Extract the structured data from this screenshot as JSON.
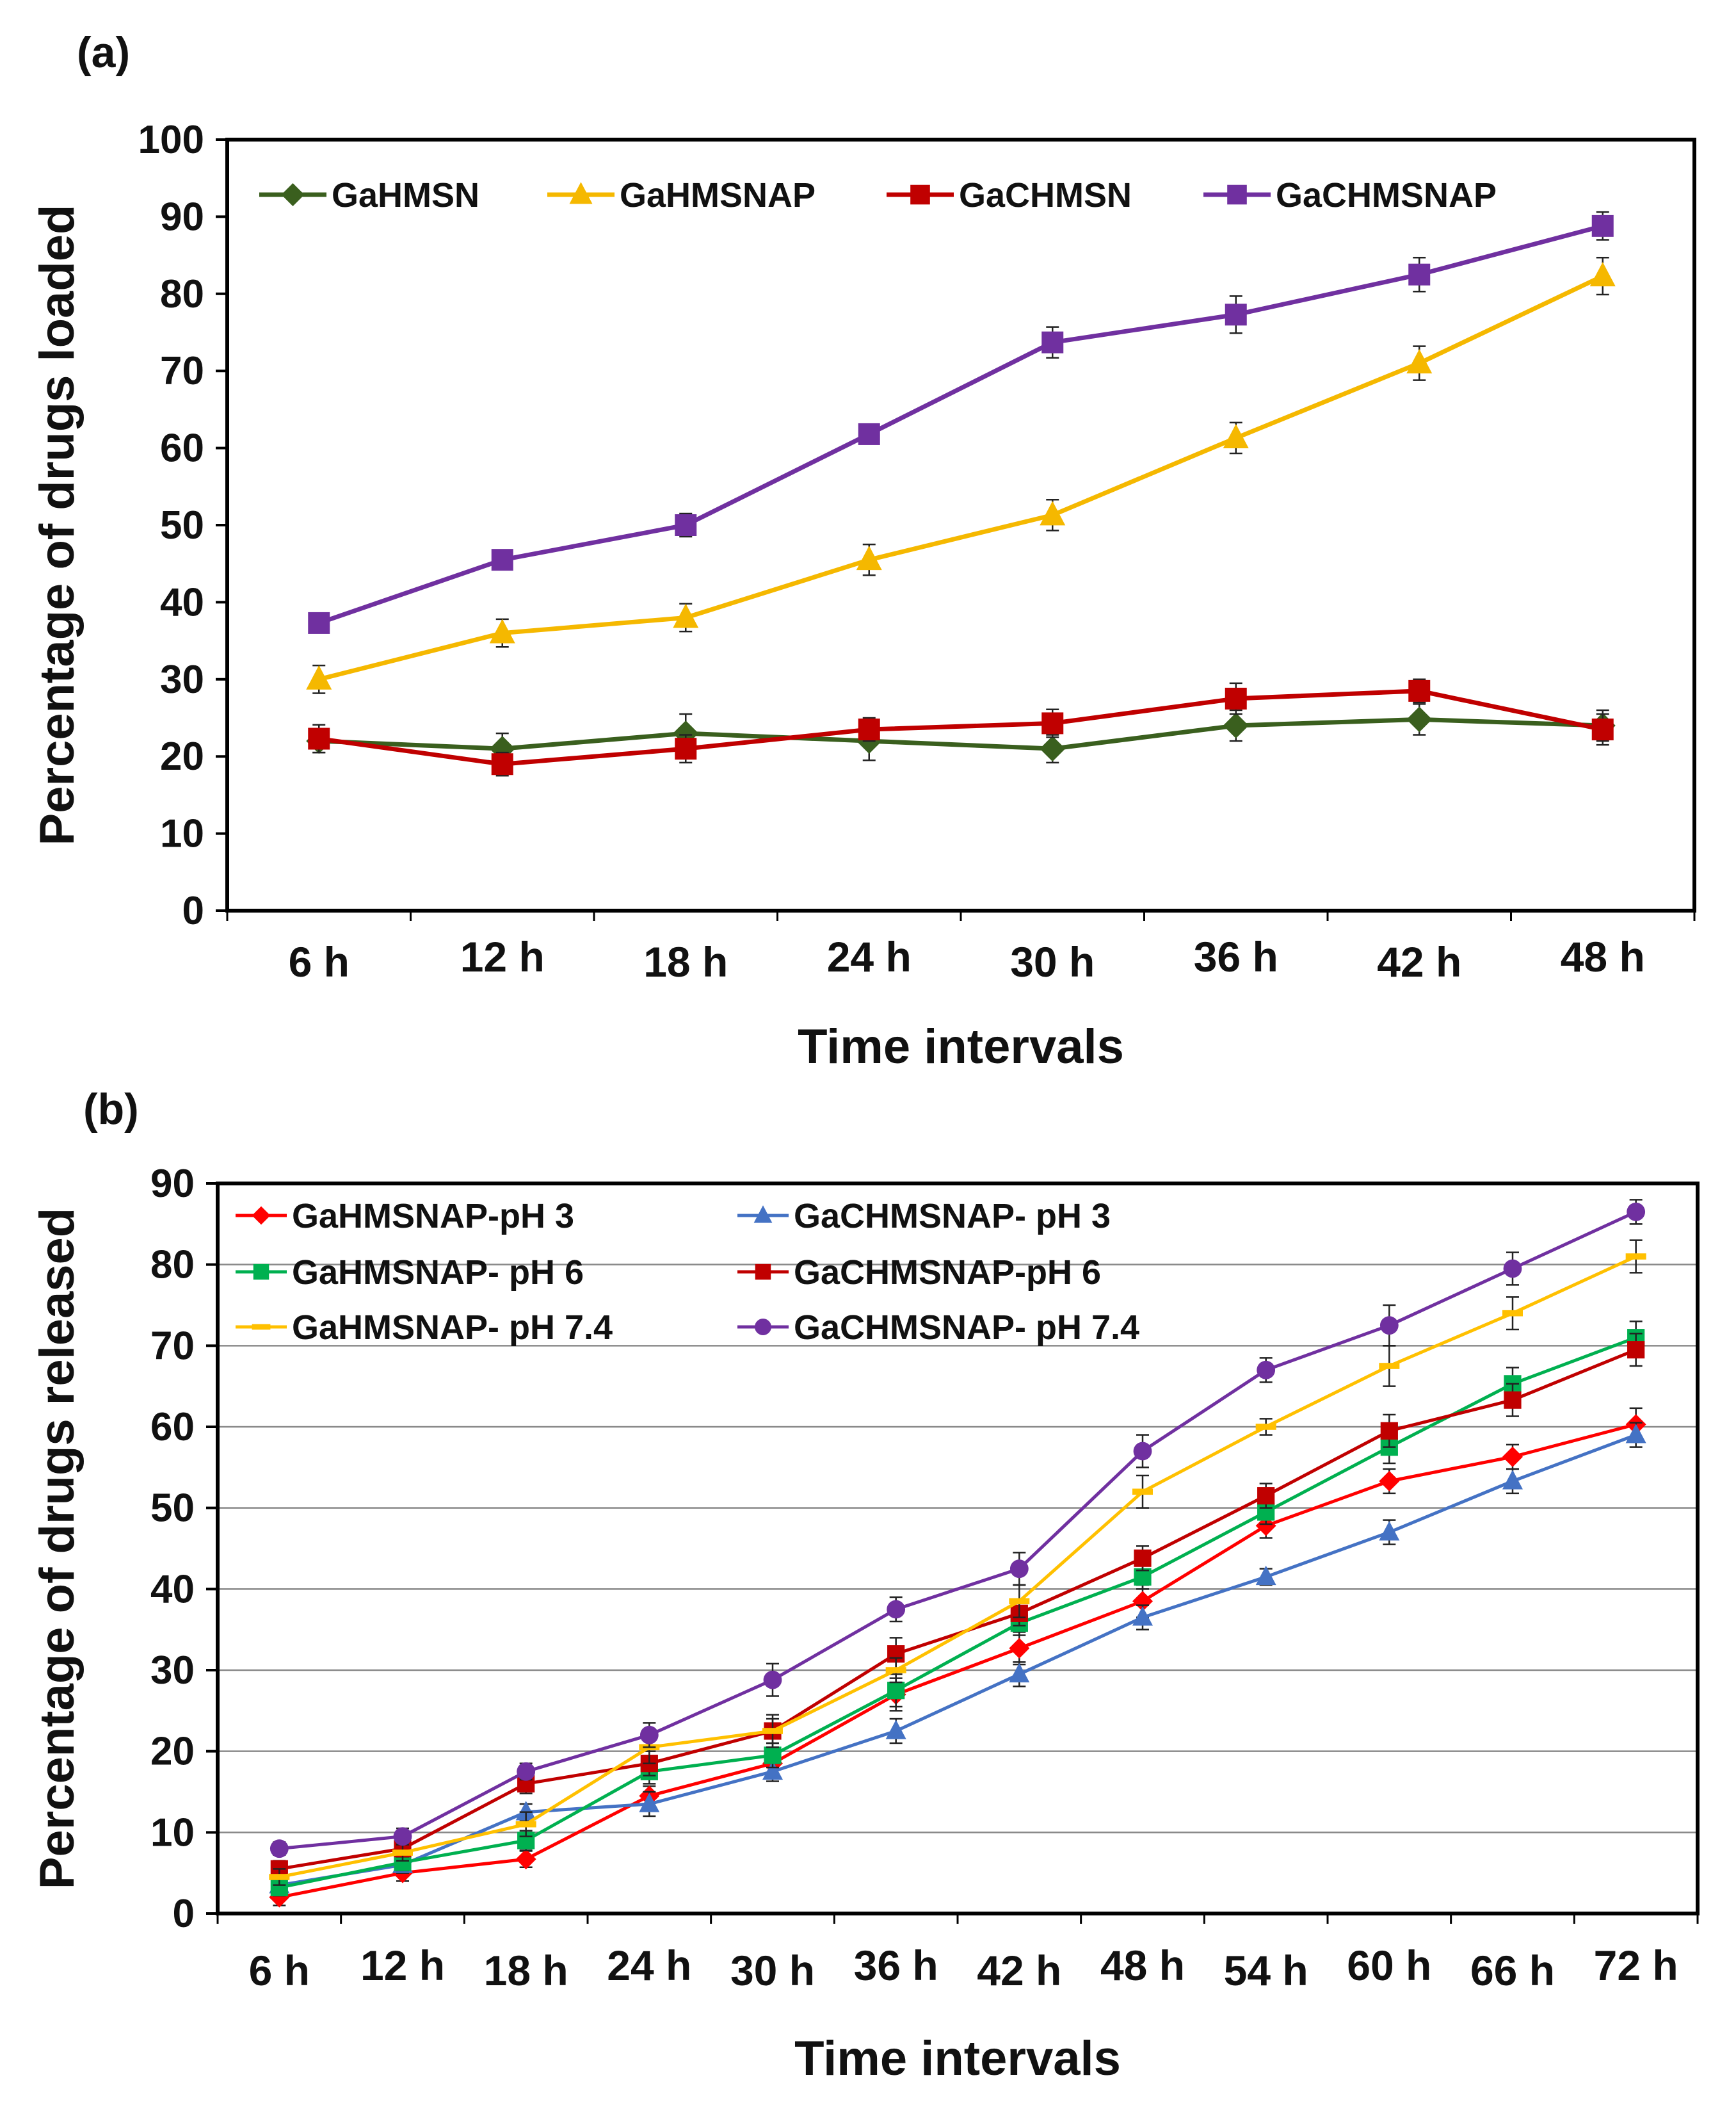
{
  "chart_data": [
    {
      "type": "line",
      "panel_label": "(a)",
      "title": "",
      "xlabel": "Time intervals",
      "ylabel": "Percentage of drugs loaded",
      "ylim": [
        0,
        100
      ],
      "yticks": [
        0,
        10,
        20,
        30,
        40,
        50,
        60,
        70,
        80,
        90,
        100
      ],
      "grid": false,
      "legend_position": "top",
      "categories": [
        "6 h",
        "12 h",
        "18 h",
        "24 h",
        "30 h",
        "36 h",
        "42 h",
        "48 h"
      ],
      "series": [
        {
          "name": "GaHMSN",
          "color": "#3a5f1e",
          "marker": "diamond",
          "values": [
            22,
            21,
            23,
            22,
            21,
            24,
            24.8,
            24
          ],
          "errors": [
            1.5,
            2,
            2.5,
            2.5,
            1.8,
            2,
            2,
            2
          ]
        },
        {
          "name": "GaHMSNAP",
          "color": "#f5b800",
          "marker": "triangle",
          "values": [
            30,
            36,
            38,
            45.5,
            51.3,
            61.3,
            71,
            82.3
          ],
          "errors": [
            1.8,
            1.8,
            1.8,
            2,
            2,
            2,
            2.2,
            2.4
          ]
        },
        {
          "name": "GaCHMSN",
          "color": "#c00000",
          "marker": "square",
          "values": [
            22.3,
            19,
            21,
            23.5,
            24.3,
            27.5,
            28.5,
            23.5
          ],
          "errors": [
            1.8,
            1.5,
            1.8,
            1.5,
            1.8,
            2,
            1.5,
            2
          ]
        },
        {
          "name": "GaCHMSNAP",
          "color": "#7030a0",
          "marker": "square",
          "values": [
            37.3,
            45.5,
            50,
            61.8,
            73.7,
            77.3,
            82.5,
            88.8
          ],
          "errors": [
            1.2,
            1.2,
            1.5,
            1,
            2,
            2.4,
            2.2,
            1.8
          ]
        }
      ]
    },
    {
      "type": "line",
      "panel_label": "(b)",
      "title": "",
      "xlabel": "Time intervals",
      "ylabel": "Percentage of drugs released",
      "ylim": [
        0,
        90
      ],
      "yticks": [
        0,
        10,
        20,
        30,
        40,
        50,
        60,
        70,
        80,
        90
      ],
      "grid": true,
      "legend_position": "top-left",
      "categories": [
        "6 h",
        "12 h",
        "18 h",
        "24 h",
        "30 h",
        "36 h",
        "42 h",
        "48 h",
        "54 h",
        "60 h",
        "66 h",
        "72 h"
      ],
      "series": [
        {
          "name": "GaHMSNAP-pH 3",
          "color": "#ff0000",
          "marker": "diamond",
          "values": [
            2,
            5,
            6.7,
            14.5,
            18.5,
            27,
            32.7,
            38.5,
            47.8,
            53.3,
            56.3,
            60.3
          ],
          "errors": [
            1,
            1,
            1,
            1.2,
            1.5,
            2,
            2,
            2,
            1.5,
            1.5,
            1.5,
            2
          ]
        },
        {
          "name": "GaCHMSNAP- pH 3",
          "color": "#4472c4",
          "marker": "triangle",
          "values": [
            3.5,
            6,
            12.5,
            13.5,
            17.5,
            22.5,
            29.5,
            36.5,
            41.5,
            47,
            53.3,
            59
          ],
          "errors": [
            1,
            1,
            1,
            1.5,
            1.2,
            1.5,
            1.5,
            1.5,
            1,
            1.5,
            1.5,
            1.5
          ]
        },
        {
          "name": "GaHMSNAP- pH 6",
          "color": "#00b050",
          "marker": "square",
          "values": [
            3.2,
            6.3,
            9,
            17.5,
            19.5,
            27.5,
            35.8,
            41.5,
            49.5,
            57.5,
            65.3,
            71
          ],
          "errors": [
            1,
            1,
            1.2,
            1.5,
            1.5,
            2,
            1.5,
            1.5,
            1.5,
            2,
            2,
            2
          ]
        },
        {
          "name": "GaCHMSNAP-pH 6",
          "color": "#c00000",
          "marker": "square",
          "values": [
            5.5,
            8,
            16,
            18.5,
            22.5,
            32,
            37,
            43.8,
            51.5,
            59.5,
            63.3,
            69.5
          ],
          "errors": [
            1,
            1,
            1.2,
            1.5,
            1.5,
            2,
            1.5,
            1.5,
            1.5,
            2,
            2,
            2
          ]
        },
        {
          "name": "GaHMSNAP- pH 7.4",
          "color": "#ffc000",
          "marker": "dash",
          "values": [
            4.5,
            7.5,
            11,
            20.5,
            22.5,
            30,
            38.5,
            52,
            60,
            67.5,
            74,
            81
          ],
          "errors": [
            1,
            1,
            1.5,
            2,
            2,
            1.5,
            2,
            2,
            1,
            2.5,
            2,
            2
          ]
        },
        {
          "name": "GaCHMSNAP- pH 7.4",
          "color": "#7030a0",
          "marker": "circle",
          "values": [
            8,
            9.5,
            17.5,
            22,
            28.8,
            37.5,
            42.5,
            57,
            67,
            72.5,
            79.5,
            86.5
          ],
          "errors": [
            0.8,
            1,
            1,
            1.5,
            2,
            1.5,
            2,
            2,
            1.5,
            2.5,
            2,
            1.5
          ]
        }
      ]
    }
  ]
}
